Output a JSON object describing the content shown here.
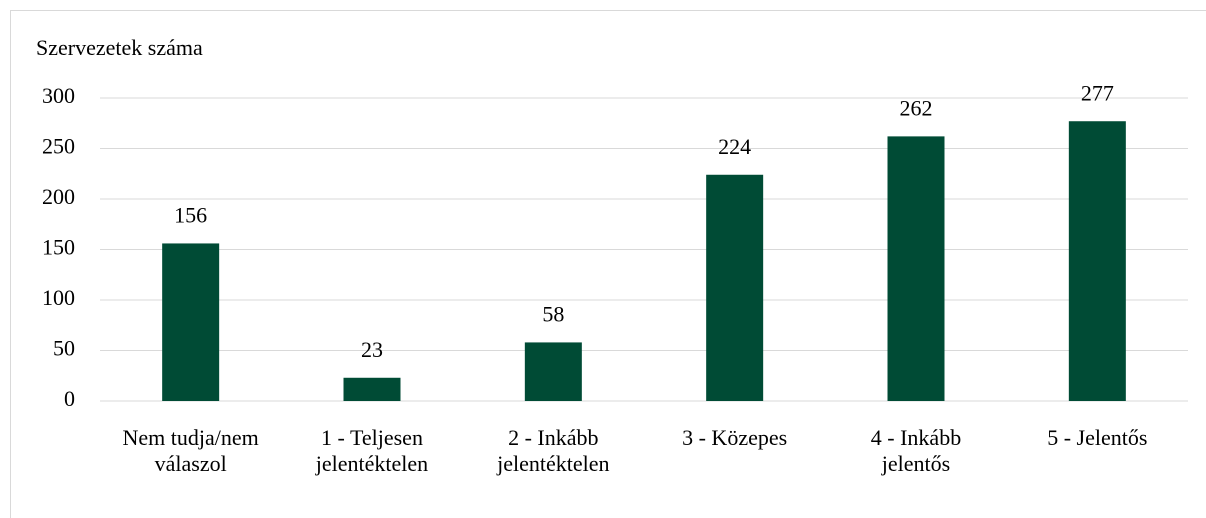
{
  "chart_data": {
    "type": "bar",
    "ylabel": "Szervezetek száma",
    "categories": [
      "Nem tudja/nem válaszol",
      "1 - Teljesen jelentéktelen",
      "2 - Inkább jelentéktelen",
      "3 - Közepes",
      "4 - Inkább jelentős",
      "5 - Jelentős"
    ],
    "values": [
      156,
      23,
      58,
      224,
      262,
      277
    ],
    "color": "#004b35",
    "ylim": [
      0,
      300
    ],
    "yticks": [
      0,
      50,
      100,
      150,
      200,
      250,
      300
    ],
    "grid": true
  }
}
